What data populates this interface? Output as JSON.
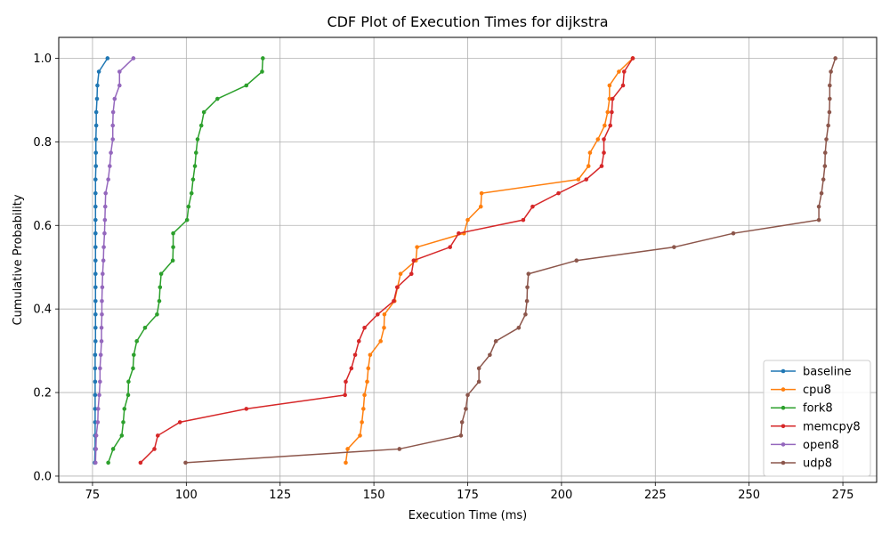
{
  "chart_data": {
    "type": "line",
    "title": "CDF Plot of Execution Times for dijkstra",
    "xlabel": "Execution Time (ms)",
    "ylabel": "Cumulative Probability",
    "xlim": [
      66,
      284
    ],
    "ylim": [
      -0.015,
      1.05
    ],
    "xticks": [
      75,
      100,
      125,
      150,
      175,
      200,
      225,
      250,
      275
    ],
    "yticks": [
      0.0,
      0.2,
      0.4,
      0.6,
      0.8,
      1.0
    ],
    "grid": true,
    "legend_position": "lower-right",
    "y": [
      0.032,
      0.065,
      0.097,
      0.129,
      0.161,
      0.194,
      0.226,
      0.258,
      0.29,
      0.323,
      0.355,
      0.387,
      0.419,
      0.452,
      0.484,
      0.516,
      0.548,
      0.581,
      0.613,
      0.645,
      0.677,
      0.71,
      0.742,
      0.774,
      0.806,
      0.839,
      0.871,
      0.903,
      0.935,
      0.968,
      1.0
    ],
    "series": [
      {
        "name": "baseline",
        "color": "#1f77b4",
        "x": [
          75.6,
          75.7,
          75.7,
          75.7,
          75.7,
          75.7,
          75.7,
          75.7,
          75.7,
          75.8,
          75.8,
          75.8,
          75.8,
          75.8,
          75.8,
          75.8,
          75.8,
          75.8,
          75.8,
          75.8,
          75.8,
          75.8,
          75.9,
          75.9,
          75.9,
          76.0,
          76.0,
          76.2,
          76.3,
          76.7,
          79.0
        ]
      },
      {
        "name": "cpu8",
        "color": "#ff7f0e",
        "x": [
          142.5,
          143.0,
          146.3,
          146.8,
          147.2,
          147.5,
          148.2,
          148.5,
          149.0,
          151.8,
          152.7,
          152.8,
          155.5,
          156.3,
          157.1,
          161.2,
          161.5,
          174.0,
          175.0,
          178.5,
          178.7,
          204.5,
          207.2,
          207.6,
          209.7,
          211.5,
          212.3,
          212.8,
          212.8,
          215.3,
          219.0
        ]
      },
      {
        "name": "fork8",
        "color": "#2ca02c",
        "x": [
          79.2,
          80.5,
          82.8,
          83.2,
          83.5,
          84.5,
          84.6,
          85.8,
          86.0,
          86.8,
          89.0,
          92.2,
          92.8,
          93.0,
          93.3,
          96.4,
          96.5,
          96.5,
          100.2,
          100.6,
          101.4,
          101.8,
          102.3,
          102.6,
          103.0,
          104.0,
          104.7,
          108.3,
          116.0,
          120.2,
          120.4
        ]
      },
      {
        "name": "memcpy8",
        "color": "#d62728",
        "x": [
          87.8,
          91.5,
          92.4,
          98.3,
          116.0,
          142.3,
          142.5,
          144.0,
          145.0,
          146.0,
          147.5,
          151.0,
          155.3,
          156.2,
          160.0,
          160.6,
          170.3,
          172.6,
          189.8,
          192.3,
          199.2,
          206.6,
          210.7,
          211.3,
          211.3,
          213.0,
          213.4,
          213.6,
          216.4,
          216.7,
          219.0
        ]
      },
      {
        "name": "open8",
        "color": "#9467bd",
        "x": [
          75.8,
          75.9,
          76.0,
          76.4,
          76.5,
          76.8,
          77.0,
          77.0,
          77.2,
          77.4,
          77.4,
          77.5,
          77.5,
          77.6,
          77.7,
          77.9,
          78.0,
          78.2,
          78.3,
          78.4,
          78.5,
          79.2,
          79.6,
          79.9,
          80.4,
          80.4,
          80.5,
          80.9,
          82.2,
          82.2,
          85.9
        ]
      },
      {
        "name": "udp8",
        "color": "#8c564b",
        "x": [
          99.8,
          156.8,
          173.2,
          173.5,
          174.5,
          175.0,
          178.0,
          178.0,
          180.9,
          182.5,
          188.6,
          190.4,
          190.8,
          190.9,
          191.2,
          204.0,
          230.0,
          245.8,
          268.6,
          268.6,
          269.3,
          269.8,
          270.2,
          270.3,
          270.6,
          271.1,
          271.4,
          271.5,
          271.5,
          271.8,
          273.0
        ]
      }
    ]
  }
}
